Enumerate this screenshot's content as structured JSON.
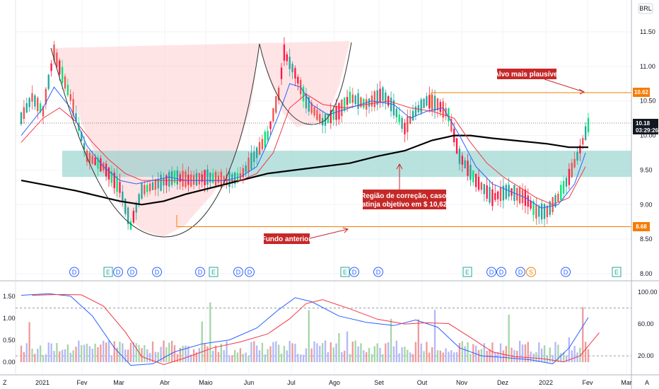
{
  "chart_data": {
    "type": "candlestick",
    "currency": "BRL",
    "price_axis": {
      "range": [
        8.0,
        11.8
      ],
      "ticks": [
        "11.50",
        "11.00",
        "10.50",
        "10.00",
        "9.50",
        "9.00",
        "8.50",
        "8.00"
      ]
    },
    "x_labels": [
      "2021",
      "Fev",
      "Mar",
      "Abr",
      "Maio",
      "Jun",
      "Jul",
      "Ago",
      "Set",
      "Out",
      "Nov",
      "Dez",
      "2022",
      "Fev",
      "Mar"
    ],
    "price_path": [
      [
        0,
        10.25
      ],
      [
        4,
        10.55
      ],
      [
        8,
        10.35
      ],
      [
        12,
        11.2
      ],
      [
        18,
        10.55
      ],
      [
        24,
        9.7
      ],
      [
        30,
        9.55
      ],
      [
        36,
        9.25
      ],
      [
        40,
        8.7
      ],
      [
        44,
        9.2
      ],
      [
        50,
        9.3
      ],
      [
        56,
        9.4
      ],
      [
        62,
        9.35
      ],
      [
        68,
        9.4
      ],
      [
        74,
        9.35
      ],
      [
        80,
        9.4
      ],
      [
        86,
        9.75
      ],
      [
        90,
        10.0
      ],
      [
        94,
        10.6
      ],
      [
        96,
        11.2
      ],
      [
        100,
        10.9
      ],
      [
        104,
        10.5
      ],
      [
        110,
        10.2
      ],
      [
        116,
        10.35
      ],
      [
        120,
        10.55
      ],
      [
        126,
        10.45
      ],
      [
        132,
        10.6
      ],
      [
        136,
        10.4
      ],
      [
        140,
        10.1
      ],
      [
        144,
        10.35
      ],
      [
        148,
        10.5
      ],
      [
        152,
        10.45
      ],
      [
        156,
        10.3
      ],
      [
        160,
        9.7
      ],
      [
        166,
        9.35
      ],
      [
        172,
        9.1
      ],
      [
        178,
        9.2
      ],
      [
        184,
        9.1
      ],
      [
        188,
        8.9
      ],
      [
        192,
        8.9
      ],
      [
        196,
        9.1
      ],
      [
        200,
        9.4
      ],
      [
        204,
        9.8
      ],
      [
        207,
        10.15
      ]
    ],
    "ma_blue": [
      [
        0,
        10.0
      ],
      [
        8,
        10.4
      ],
      [
        12,
        10.7
      ],
      [
        18,
        10.4
      ],
      [
        24,
        9.85
      ],
      [
        30,
        9.55
      ],
      [
        36,
        9.35
      ],
      [
        42,
        9.3
      ],
      [
        48,
        9.35
      ],
      [
        54,
        9.4
      ],
      [
        60,
        9.35
      ],
      [
        68,
        9.35
      ],
      [
        74,
        9.35
      ],
      [
        80,
        9.4
      ],
      [
        86,
        9.55
      ],
      [
        90,
        9.9
      ],
      [
        94,
        10.3
      ],
      [
        98,
        10.75
      ],
      [
        102,
        10.7
      ],
      [
        106,
        10.45
      ],
      [
        112,
        10.3
      ],
      [
        120,
        10.4
      ],
      [
        128,
        10.5
      ],
      [
        136,
        10.45
      ],
      [
        142,
        10.25
      ],
      [
        148,
        10.35
      ],
      [
        154,
        10.4
      ],
      [
        160,
        10.0
      ],
      [
        166,
        9.55
      ],
      [
        172,
        9.3
      ],
      [
        178,
        9.2
      ],
      [
        184,
        9.1
      ],
      [
        190,
        8.95
      ],
      [
        196,
        9.0
      ],
      [
        202,
        9.3
      ],
      [
        206,
        9.75
      ]
    ],
    "ma_red": [
      [
        0,
        9.9
      ],
      [
        8,
        10.25
      ],
      [
        14,
        10.4
      ],
      [
        20,
        10.2
      ],
      [
        26,
        9.9
      ],
      [
        32,
        9.65
      ],
      [
        38,
        9.45
      ],
      [
        44,
        9.35
      ],
      [
        50,
        9.35
      ],
      [
        56,
        9.35
      ],
      [
        64,
        9.35
      ],
      [
        72,
        9.35
      ],
      [
        80,
        9.35
      ],
      [
        86,
        9.45
      ],
      [
        92,
        9.75
      ],
      [
        98,
        10.4
      ],
      [
        104,
        10.6
      ],
      [
        110,
        10.45
      ],
      [
        118,
        10.4
      ],
      [
        126,
        10.45
      ],
      [
        134,
        10.5
      ],
      [
        142,
        10.4
      ],
      [
        150,
        10.35
      ],
      [
        158,
        10.25
      ],
      [
        164,
        9.9
      ],
      [
        170,
        9.6
      ],
      [
        176,
        9.4
      ],
      [
        182,
        9.25
      ],
      [
        188,
        9.1
      ],
      [
        194,
        9.0
      ],
      [
        200,
        9.1
      ],
      [
        206,
        9.55
      ]
    ],
    "ma_long": [
      [
        0,
        9.35
      ],
      [
        20,
        9.2
      ],
      [
        36,
        9.05
      ],
      [
        44,
        9.0
      ],
      [
        52,
        9.05
      ],
      [
        60,
        9.15
      ],
      [
        70,
        9.25
      ],
      [
        80,
        9.35
      ],
      [
        90,
        9.45
      ],
      [
        100,
        9.5
      ],
      [
        110,
        9.55
      ],
      [
        120,
        9.6
      ],
      [
        130,
        9.7
      ],
      [
        140,
        9.78
      ],
      [
        150,
        9.93
      ],
      [
        158,
        10.0
      ],
      [
        164,
        10.0
      ],
      [
        172,
        9.96
      ],
      [
        182,
        9.92
      ],
      [
        192,
        9.88
      ],
      [
        200,
        9.83
      ],
      [
        207,
        9.83
      ]
    ],
    "horizontal_levels": [
      {
        "price": 10.62,
        "label": "10.62",
        "color": "#f57c00"
      },
      {
        "price": 8.68,
        "label": "8.68",
        "color": "#f57c00"
      }
    ],
    "last_price": {
      "label": "10.18",
      "countdown": "03:29:26",
      "price": 10.18
    },
    "correction_zone": {
      "from": 9.4,
      "to": 9.78,
      "color": "#80cbc4"
    },
    "cup_region_color": "#ffcdd2",
    "annotations": [
      {
        "text": "Alvo mais plausível"
      },
      {
        "text_lines": [
          "Região de correção, caso,",
          "atinja objetivo em $ 10,62"
        ]
      },
      {
        "text": "Fundo anterior"
      }
    ],
    "event_markers": [
      "D",
      "E",
      "D",
      "D",
      "D",
      "D",
      "E",
      "D",
      "D",
      "E",
      "D",
      "D",
      "E",
      "D",
      "D",
      "D",
      "S",
      "D",
      "E"
    ],
    "oscillator": {
      "left_ticks": [
        "1.50",
        "1.00",
        "0.50",
        "0.00"
      ],
      "right_ticks": [
        "100.00",
        "60.00",
        "20.00"
      ],
      "levels": [
        80,
        20
      ]
    },
    "colors": {
      "up": "#26a69a",
      "down": "#ef5350",
      "up_bright": "#00e676",
      "down_bright": "#ff1744",
      "ma_blue": "#2962ff",
      "ma_red": "#f23645",
      "ma_long": "#000000"
    }
  },
  "corner_icons": {
    "left": "Z",
    "right": "A"
  }
}
